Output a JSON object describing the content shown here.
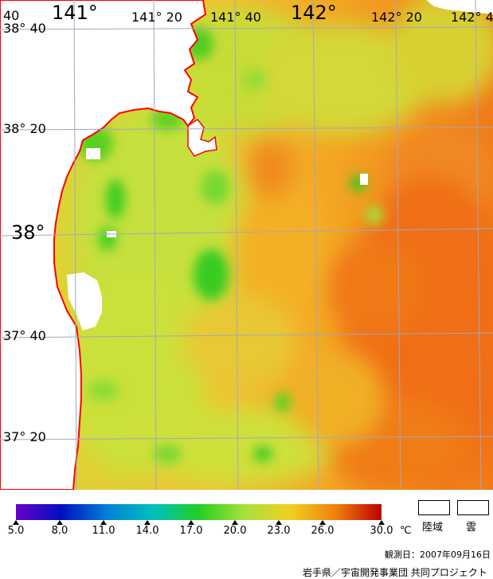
{
  "map": {
    "lon_labels": [
      "141°",
      "141° 20",
      "141° 40",
      "142°",
      "142° 20",
      "142° 4"
    ],
    "lat_labels": [
      "38° 40",
      "38° 20",
      "38°",
      "37° 40",
      "37° 20"
    ],
    "edge_label": "40"
  },
  "legend": {
    "ticks": [
      "5.0",
      "8.0",
      "11.0",
      "14.0",
      "17.0",
      "20.0",
      "23.0",
      "26.0",
      "30.0"
    ],
    "unit": "℃",
    "land_label": "陸域",
    "cloud_label": "雲",
    "colorbar": {
      "min": 5.0,
      "max": 30.0,
      "stops": [
        "#6a00c8",
        "#0010c0",
        "#0080d8",
        "#00c0c0",
        "#20d020",
        "#a8e040",
        "#f0d020",
        "#f08010",
        "#c00000"
      ]
    }
  },
  "observation_date": "観測日：2007年09月16日",
  "credit": "岩手県／宇宙開発事業団 共同プロジェクト",
  "colors": {
    "sea_warm": "#f07a18",
    "sea_mid": "#f2c030",
    "sea_cool": "#bfe040",
    "sea_green": "#40d020",
    "coastline": "#ff0000",
    "grid": "#9aa0b8"
  }
}
